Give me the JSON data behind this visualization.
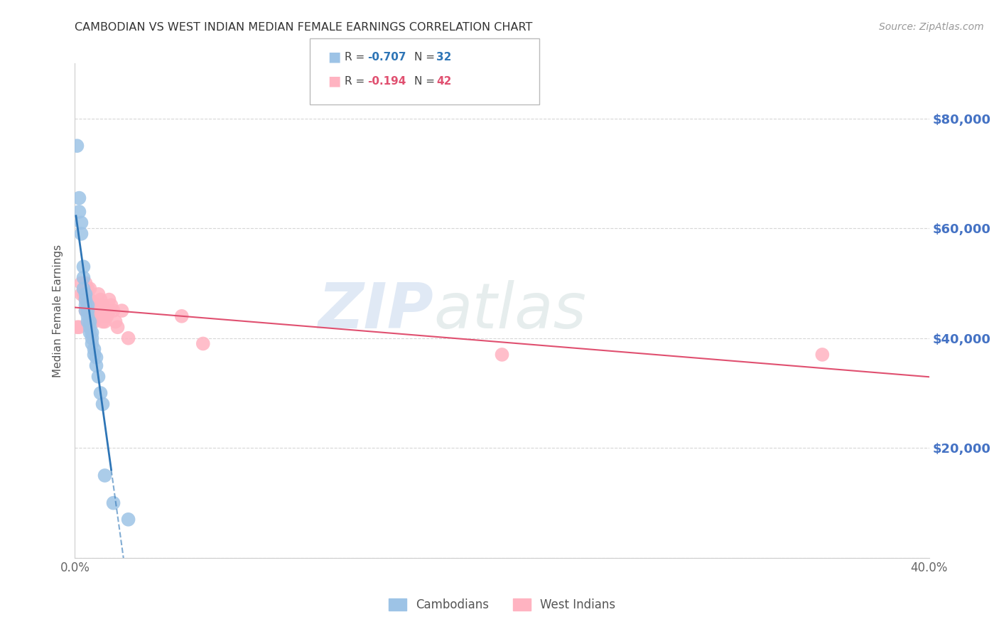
{
  "title": "CAMBODIAN VS WEST INDIAN MEDIAN FEMALE EARNINGS CORRELATION CHART",
  "source": "Source: ZipAtlas.com",
  "ylabel": "Median Female Earnings",
  "xlim": [
    0.0,
    0.4
  ],
  "ylim": [
    0,
    90000
  ],
  "yticks": [
    0,
    20000,
    40000,
    60000,
    80000
  ],
  "ytick_labels": [
    "",
    "$20,000",
    "$40,000",
    "$60,000",
    "$80,000"
  ],
  "xticks": [
    0.0,
    0.05,
    0.1,
    0.15,
    0.2,
    0.25,
    0.3,
    0.35,
    0.4
  ],
  "xtick_labels": [
    "0.0%",
    "",
    "",
    "",
    "",
    "",
    "",
    "",
    "40.0%"
  ],
  "background_color": "#ffffff",
  "grid_color": "#cccccc",
  "right_ytick_color": "#4472c4",
  "watermark": "ZIPatlas",
  "cambodian_color": "#9dc3e6",
  "cambodian_line_color": "#2e75b6",
  "west_indian_color": "#ffb3c1",
  "west_indian_line_color": "#e05070",
  "cambodian_x": [
    0.001,
    0.002,
    0.002,
    0.003,
    0.003,
    0.004,
    0.004,
    0.004,
    0.005,
    0.005,
    0.005,
    0.005,
    0.006,
    0.006,
    0.006,
    0.006,
    0.007,
    0.007,
    0.007,
    0.008,
    0.008,
    0.008,
    0.009,
    0.009,
    0.01,
    0.01,
    0.011,
    0.012,
    0.013,
    0.014,
    0.018,
    0.025
  ],
  "cambodian_y": [
    75000,
    65500,
    63000,
    61000,
    59000,
    53000,
    51000,
    49000,
    48000,
    47000,
    46000,
    45000,
    46000,
    45000,
    44000,
    43000,
    43000,
    42000,
    41000,
    41000,
    40000,
    39000,
    38000,
    37000,
    36500,
    35000,
    33000,
    30000,
    28000,
    15000,
    10000,
    7000
  ],
  "west_indian_x": [
    0.001,
    0.002,
    0.003,
    0.003,
    0.004,
    0.005,
    0.005,
    0.005,
    0.006,
    0.006,
    0.007,
    0.007,
    0.007,
    0.008,
    0.008,
    0.008,
    0.009,
    0.009,
    0.01,
    0.01,
    0.011,
    0.011,
    0.012,
    0.012,
    0.013,
    0.013,
    0.013,
    0.014,
    0.015,
    0.015,
    0.016,
    0.016,
    0.017,
    0.018,
    0.019,
    0.02,
    0.022,
    0.025,
    0.05,
    0.06,
    0.2,
    0.35
  ],
  "west_indian_y": [
    42000,
    42000,
    50000,
    48000,
    48000,
    50000,
    47000,
    45000,
    49000,
    46000,
    49000,
    47000,
    45000,
    46000,
    45000,
    44000,
    44000,
    43000,
    46000,
    44000,
    48000,
    46000,
    47000,
    45000,
    46000,
    44000,
    43000,
    43000,
    45000,
    44000,
    47000,
    45000,
    46000,
    45000,
    43000,
    42000,
    45000,
    40000,
    44000,
    39000,
    37000,
    37000
  ]
}
